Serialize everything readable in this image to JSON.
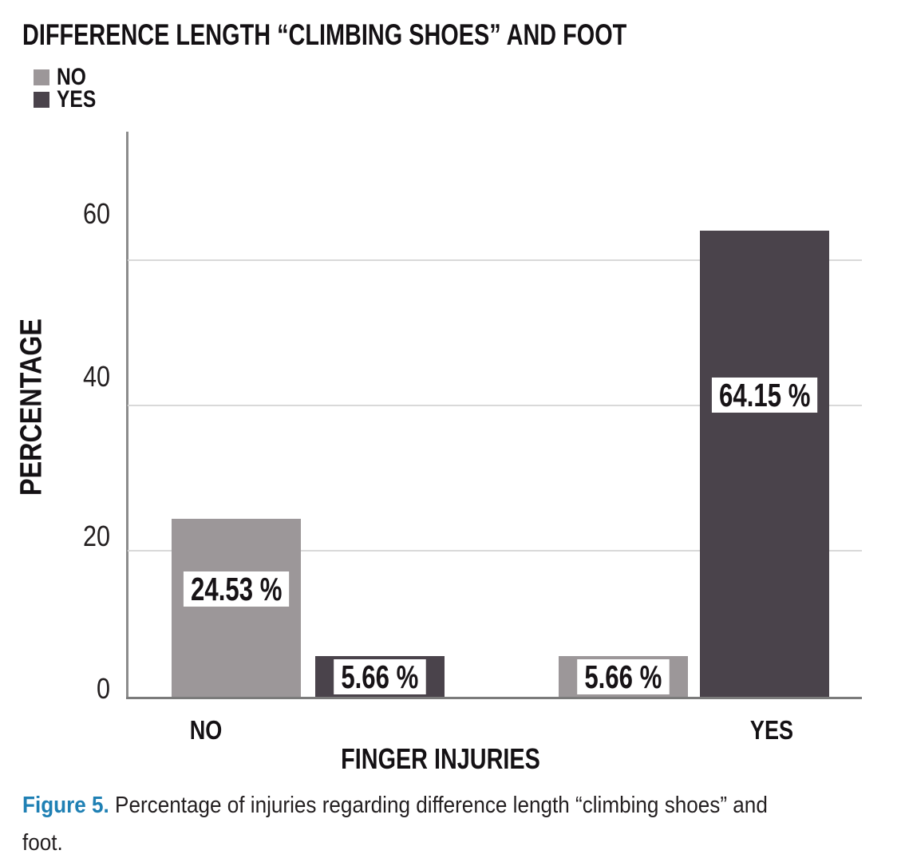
{
  "header": {
    "title": "DIFFERENCE LENGTH “CLIMBING SHOES” AND FOOT"
  },
  "legend": {
    "items": [
      {
        "label": "NO",
        "color": "#9c9799"
      },
      {
        "label": "YES",
        "color": "#4a434b"
      }
    ]
  },
  "y_axis": {
    "title": "PERCENTAGE",
    "tick_labels": [
      "60",
      "40",
      "20",
      "0"
    ]
  },
  "x_axis": {
    "title": "FINGER INJURIES",
    "category_labels": [
      "NO",
      "YES"
    ]
  },
  "bars": {
    "value_labels": [
      "24.53 %",
      "5.66 %",
      "5.66 %",
      "64.15 %"
    ]
  },
  "caption": {
    "label": "Figure 5.",
    "text": "Percentage of injuries regarding difference length “climbing shoes” and foot.",
    "accent_color": "#1f80b4"
  },
  "colors": {
    "bar_no": "#9c9799",
    "bar_yes": "#4a434b",
    "gridline": "#d9d9d9",
    "y_axis_line": "#8c8c8c",
    "x_axis_line": "#7b7b7b"
  },
  "chart_data": {
    "type": "bar",
    "title": "DIFFERENCE LENGTH “CLIMBING SHOES” AND FOOT",
    "categories": [
      "NO",
      "YES"
    ],
    "series": [
      {
        "name": "NO",
        "color": "#9c9799",
        "values": [
          24.53,
          5.66
        ]
      },
      {
        "name": "YES",
        "color": "#4a434b",
        "values": [
          5.66,
          64.15
        ]
      }
    ],
    "value_label_format": "percent",
    "xlabel": "FINGER INJURIES",
    "ylabel": "PERCENTAGE",
    "ylim": [
      0,
      77.8
    ],
    "yticks": [
      0,
      20,
      40,
      60
    ],
    "grid": true,
    "legend_position": "top-left"
  }
}
